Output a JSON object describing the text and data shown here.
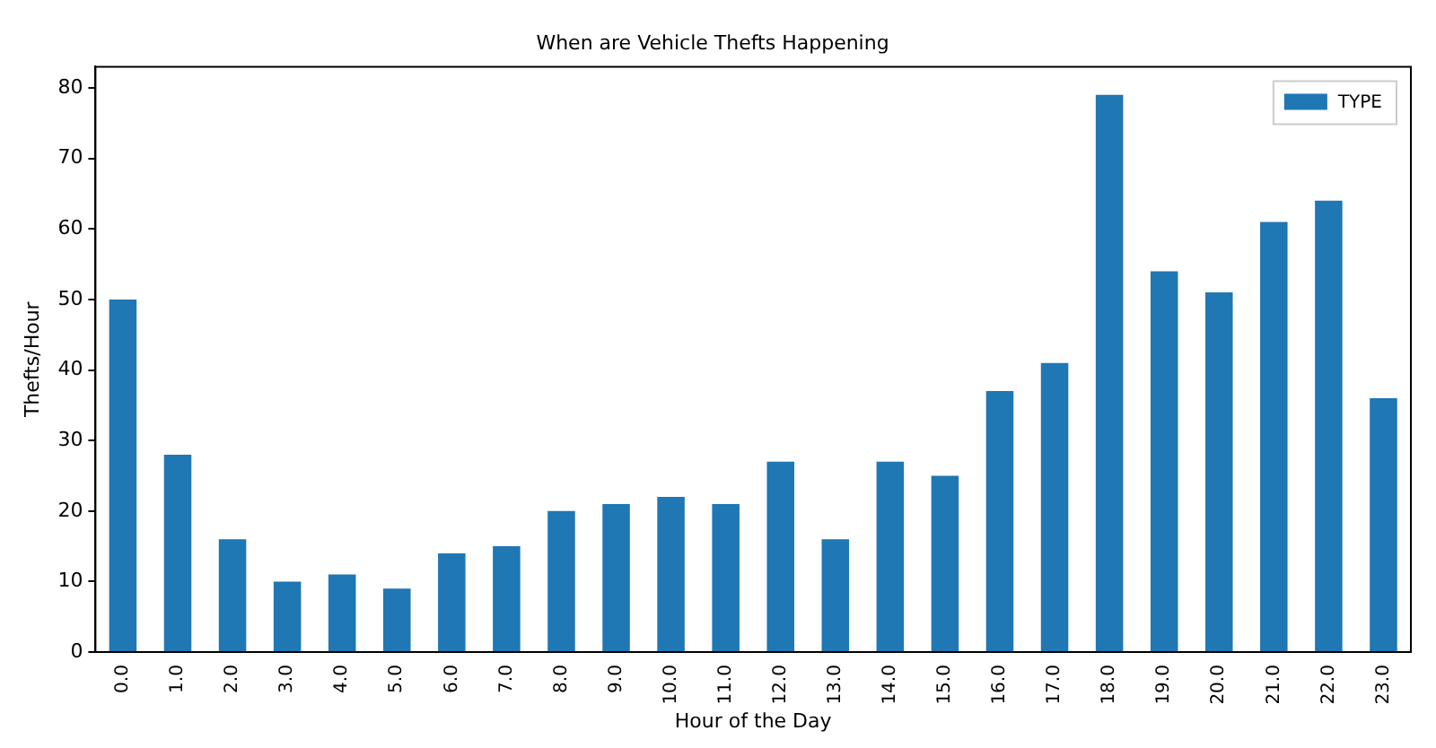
{
  "chart_data": {
    "type": "bar",
    "title": "When are Vehicle Thefts Happening",
    "xlabel": "Hour of the Day",
    "ylabel": "Thefts/Hour",
    "categories": [
      "0.0",
      "1.0",
      "2.0",
      "3.0",
      "4.0",
      "5.0",
      "6.0",
      "7.0",
      "8.0",
      "9.0",
      "10.0",
      "11.0",
      "12.0",
      "13.0",
      "14.0",
      "15.0",
      "16.0",
      "17.0",
      "18.0",
      "19.0",
      "20.0",
      "21.0",
      "22.0",
      "23.0"
    ],
    "series": [
      {
        "name": "TYPE",
        "color": "#1f77b4",
        "values": [
          50,
          28,
          16,
          10,
          11,
          9,
          14,
          15,
          20,
          21,
          22,
          21,
          27,
          16,
          27,
          25,
          37,
          41,
          79,
          54,
          51,
          61,
          64,
          36
        ]
      }
    ],
    "ylim": [
      0,
      83
    ],
    "yticks": [
      0,
      10,
      20,
      30,
      40,
      50,
      60,
      70,
      80
    ],
    "grid": false,
    "legend": "top right"
  }
}
